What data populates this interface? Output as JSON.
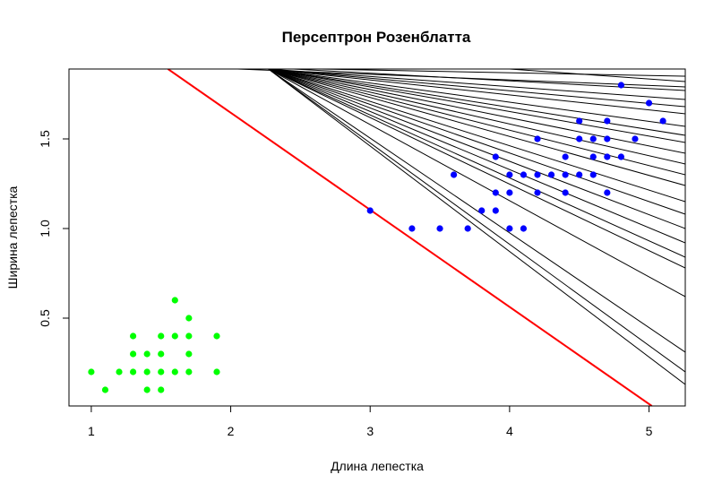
{
  "chart_data": {
    "type": "scatter",
    "title": "Персептрон Розенблатта",
    "xlabel": "Длина лепестка",
    "ylabel": "Ширина лепестка",
    "xlim": [
      0.84,
      5.26
    ],
    "ylim": [
      0.01,
      1.89
    ],
    "x_ticks": [
      1,
      2,
      3,
      4,
      5
    ],
    "y_ticks": [
      0.5,
      1.0,
      1.5
    ],
    "y_tick_labels": [
      "0.5",
      "1.0",
      "1.5"
    ],
    "grid": false,
    "legend": "none",
    "series": [
      {
        "color": "#00ff00",
        "points": [
          [
            1.0,
            0.2
          ],
          [
            1.1,
            0.1
          ],
          [
            1.2,
            0.2
          ],
          [
            1.3,
            0.2
          ],
          [
            1.3,
            0.3
          ],
          [
            1.3,
            0.4
          ],
          [
            1.4,
            0.1
          ],
          [
            1.4,
            0.2
          ],
          [
            1.4,
            0.3
          ],
          [
            1.5,
            0.1
          ],
          [
            1.5,
            0.2
          ],
          [
            1.5,
            0.3
          ],
          [
            1.5,
            0.4
          ],
          [
            1.6,
            0.2
          ],
          [
            1.6,
            0.4
          ],
          [
            1.6,
            0.6
          ],
          [
            1.7,
            0.2
          ],
          [
            1.7,
            0.3
          ],
          [
            1.7,
            0.4
          ],
          [
            1.7,
            0.5
          ],
          [
            1.9,
            0.2
          ],
          [
            1.9,
            0.4
          ]
        ]
      },
      {
        "color": "#0000ff",
        "points": [
          [
            3.0,
            1.1
          ],
          [
            3.3,
            1.0
          ],
          [
            3.5,
            1.0
          ],
          [
            3.6,
            1.3
          ],
          [
            3.7,
            1.0
          ],
          [
            3.8,
            1.1
          ],
          [
            3.9,
            1.1
          ],
          [
            3.9,
            1.2
          ],
          [
            3.9,
            1.4
          ],
          [
            4.0,
            1.0
          ],
          [
            4.0,
            1.2
          ],
          [
            4.0,
            1.3
          ],
          [
            4.1,
            1.0
          ],
          [
            4.1,
            1.3
          ],
          [
            4.2,
            1.2
          ],
          [
            4.2,
            1.3
          ],
          [
            4.2,
            1.5
          ],
          [
            4.3,
            1.3
          ],
          [
            4.4,
            1.2
          ],
          [
            4.4,
            1.3
          ],
          [
            4.4,
            1.4
          ],
          [
            4.5,
            1.3
          ],
          [
            4.5,
            1.5
          ],
          [
            4.5,
            1.6
          ],
          [
            4.6,
            1.3
          ],
          [
            4.6,
            1.4
          ],
          [
            4.6,
            1.5
          ],
          [
            4.7,
            1.2
          ],
          [
            4.7,
            1.4
          ],
          [
            4.7,
            1.5
          ],
          [
            4.7,
            1.6
          ],
          [
            4.8,
            1.4
          ],
          [
            4.8,
            1.8
          ],
          [
            4.9,
            1.5
          ],
          [
            5.0,
            1.7
          ],
          [
            5.1,
            1.6
          ]
        ]
      }
    ],
    "lines": [
      {
        "color": "#000000",
        "points": [
          [
            2.27,
            1.89
          ],
          [
            5.26,
            1.72
          ]
        ]
      },
      {
        "color": "#000000",
        "points": [
          [
            2.27,
            1.89
          ],
          [
            5.26,
            1.68
          ]
        ]
      },
      {
        "color": "#000000",
        "points": [
          [
            2.27,
            1.89
          ],
          [
            5.26,
            1.64
          ]
        ]
      },
      {
        "color": "#000000",
        "points": [
          [
            2.27,
            1.89
          ],
          [
            5.26,
            1.57
          ]
        ]
      },
      {
        "color": "#000000",
        "points": [
          [
            2.27,
            1.89
          ],
          [
            5.26,
            1.52
          ]
        ]
      },
      {
        "color": "#000000",
        "points": [
          [
            2.27,
            1.89
          ],
          [
            5.26,
            1.48
          ]
        ]
      },
      {
        "color": "#000000",
        "points": [
          [
            2.27,
            1.89
          ],
          [
            5.26,
            1.42
          ]
        ]
      },
      {
        "color": "#000000",
        "points": [
          [
            2.27,
            1.89
          ],
          [
            5.26,
            1.36
          ]
        ]
      },
      {
        "color": "#000000",
        "points": [
          [
            2.27,
            1.89
          ],
          [
            5.26,
            1.3
          ]
        ]
      },
      {
        "color": "#000000",
        "points": [
          [
            2.27,
            1.89
          ],
          [
            5.26,
            1.24
          ]
        ]
      },
      {
        "color": "#000000",
        "points": [
          [
            2.27,
            1.89
          ],
          [
            5.26,
            1.15
          ]
        ]
      },
      {
        "color": "#000000",
        "points": [
          [
            2.27,
            1.89
          ],
          [
            5.26,
            1.08
          ]
        ]
      },
      {
        "color": "#000000",
        "points": [
          [
            2.27,
            1.89
          ],
          [
            5.26,
            1.0
          ]
        ]
      },
      {
        "color": "#000000",
        "points": [
          [
            2.27,
            1.89
          ],
          [
            5.26,
            0.92
          ]
        ]
      },
      {
        "color": "#000000",
        "points": [
          [
            2.27,
            1.89
          ],
          [
            5.26,
            0.84
          ]
        ]
      },
      {
        "color": "#000000",
        "points": [
          [
            2.27,
            1.89
          ],
          [
            5.26,
            0.78
          ]
        ]
      },
      {
        "color": "#000000",
        "points": [
          [
            2.27,
            1.89
          ],
          [
            5.26,
            0.62
          ]
        ]
      },
      {
        "color": "#000000",
        "points": [
          [
            2.27,
            1.89
          ],
          [
            5.26,
            0.31
          ]
        ]
      },
      {
        "color": "#000000",
        "points": [
          [
            2.27,
            1.89
          ],
          [
            5.26,
            0.2
          ]
        ]
      },
      {
        "color": "#000000",
        "points": [
          [
            2.27,
            1.89
          ],
          [
            5.26,
            0.13
          ]
        ]
      },
      {
        "color": "#000000",
        "points": [
          [
            2.05,
            1.89
          ],
          [
            5.26,
            1.79
          ]
        ]
      },
      {
        "color": "#000000",
        "points": [
          [
            2.45,
            1.89
          ],
          [
            5.26,
            1.77
          ]
        ]
      },
      {
        "color": "#000000",
        "points": [
          [
            2.65,
            1.89
          ],
          [
            5.26,
            1.85
          ]
        ]
      },
      {
        "color": "#000000",
        "points": [
          [
            4.0,
            1.89
          ],
          [
            5.26,
            1.82
          ]
        ]
      },
      {
        "color": "#ff0000",
        "points": [
          [
            1.55,
            1.89
          ],
          [
            5.02,
            0.01
          ]
        ]
      }
    ]
  }
}
